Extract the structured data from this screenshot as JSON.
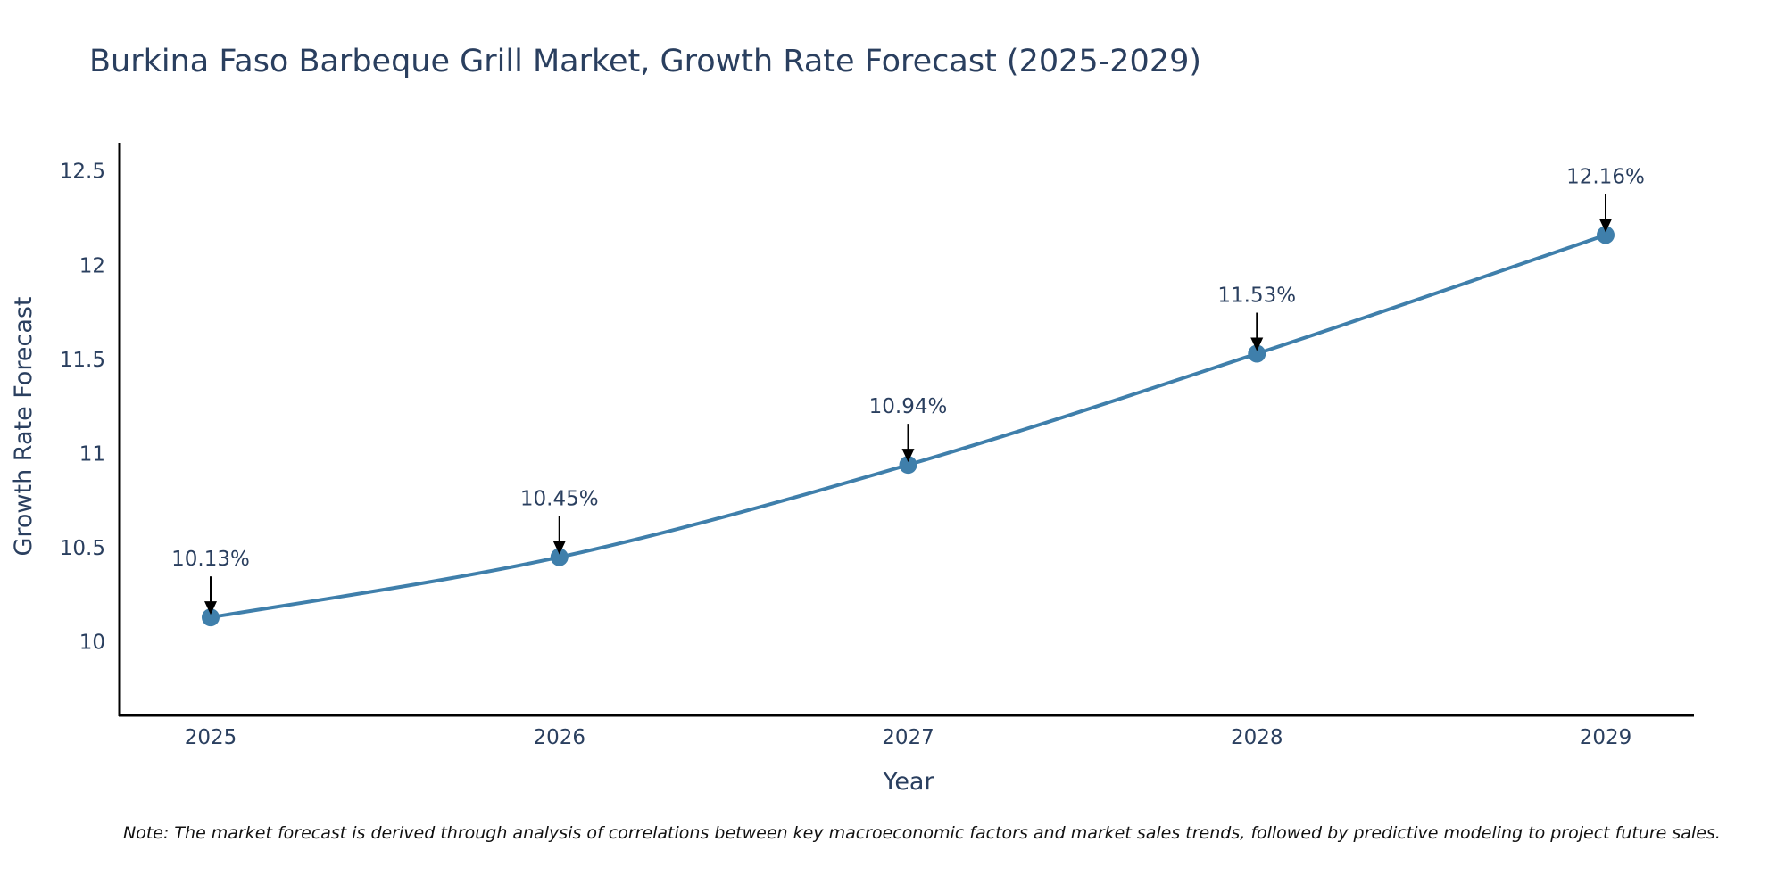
{
  "chart_data": {
    "type": "line",
    "title": "Burkina Faso Barbeque Grill Market, Growth Rate Forecast (2025-2029)",
    "xlabel": "Year",
    "ylabel": "Growth Rate Forecast",
    "categories": [
      "2025",
      "2026",
      "2027",
      "2028",
      "2029"
    ],
    "series": [
      {
        "name": "Growth Rate Forecast",
        "values": [
          10.13,
          10.45,
          10.94,
          11.53,
          12.16
        ],
        "labels": [
          "10.13%",
          "10.45%",
          "10.94%",
          "11.53%",
          "12.16%"
        ]
      }
    ],
    "yticks": [
      10,
      10.5,
      11,
      11.5,
      12,
      12.5
    ],
    "ytick_labels": [
      "10",
      "10.5",
      "11",
      "11.5",
      "12",
      "12.5"
    ],
    "ylim": [
      9.61,
      12.65
    ],
    "grid": false,
    "legend": "none",
    "note": "Note: The market forecast is derived through analysis of correlations between key macroeconomic factors and market sales trends, followed by predictive modeling to project future sales.",
    "colors": {
      "line": "#3f7fab",
      "marker": "#3f7fab",
      "text": "#2a3f5f",
      "axis": "#000000"
    }
  }
}
